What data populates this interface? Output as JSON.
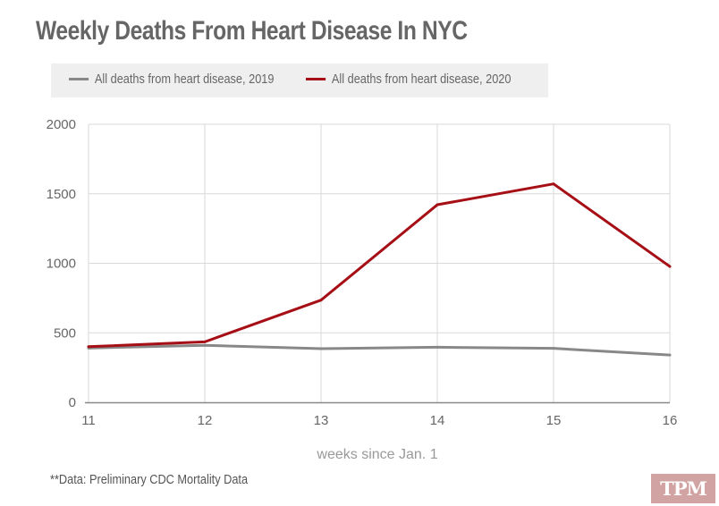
{
  "chart_data": {
    "type": "line",
    "title": "Weekly Deaths From Heart Disease In NYC",
    "xlabel": "weeks since Jan. 1",
    "ylabel": "",
    "x": [
      11,
      12,
      13,
      14,
      15,
      16
    ],
    "x_tick_labels": [
      "11",
      "12",
      "13",
      "14",
      "15",
      "16"
    ],
    "y_ticks": [
      0,
      500,
      1000,
      1500,
      2000
    ],
    "y_tick_labels": [
      "0",
      "500",
      "1000",
      "1500",
      "2000"
    ],
    "ylim": [
      0,
      2000
    ],
    "xlim": [
      11,
      16
    ],
    "grid": true,
    "legend_position": "top",
    "series": [
      {
        "name": "All deaths from heart disease, 2019",
        "color": "#888888",
        "values": [
          390,
          410,
          386,
          396,
          388,
          340
        ]
      },
      {
        "name": "All deaths from heart disease, 2020",
        "color": "#a50f15",
        "values": [
          400,
          435,
          735,
          1421,
          1571,
          977
        ]
      }
    ]
  },
  "footer": {
    "source": "**Data: Preliminary CDC Mortality Data",
    "logo": "TPM",
    "logo_color": "#d2a3a3"
  }
}
